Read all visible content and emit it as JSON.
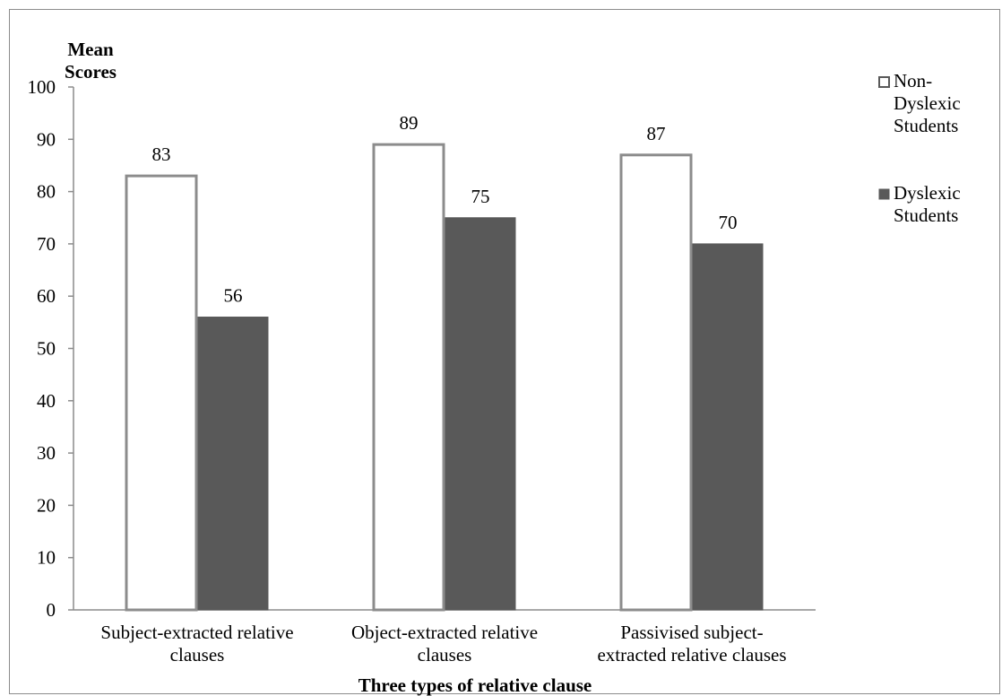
{
  "chart_data": {
    "type": "bar",
    "ylabel": [
      "Mean",
      "Scores"
    ],
    "xlabel": "Three types of relative clause",
    "categories": [
      [
        "Subject-extracted relative",
        "clauses"
      ],
      [
        "Object-extracted relative",
        "clauses"
      ],
      [
        "Passivised subject-",
        "extracted relative clauses"
      ]
    ],
    "series": [
      {
        "name": [
          "Non-",
          "Dyslexic",
          "Students"
        ],
        "values": [
          83,
          89,
          87
        ],
        "fill": "#ffffff",
        "stroke": "#8c8c8c"
      },
      {
        "name": [
          "Dyslexic",
          "Students"
        ],
        "values": [
          56,
          75,
          70
        ],
        "fill": "#595959",
        "stroke": "#595959"
      }
    ],
    "ylim": [
      0,
      100
    ],
    "yticks": [
      0,
      10,
      20,
      30,
      40,
      50,
      60,
      70,
      80,
      90,
      100
    ],
    "grid": false,
    "legend": "right",
    "colors": {
      "axis": "#8c8c8c",
      "text": "#000000"
    }
  }
}
